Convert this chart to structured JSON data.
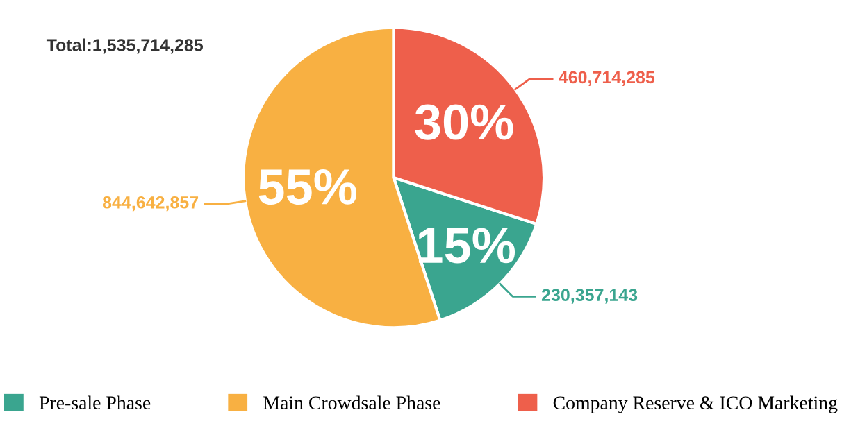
{
  "chart_data": {
    "type": "pie",
    "categories": [
      "Pre-sale Phase",
      "Main Crowdsale Phase",
      "Company Reserve & ICO Marketing"
    ],
    "values": [
      15,
      55,
      30
    ],
    "colors": [
      "#3aa58f",
      "#f8b042",
      "#ee5f4b"
    ],
    "value_labels": [
      "15%",
      "55%",
      "30%"
    ],
    "legend": "bottom",
    "annotations": [
      "Total:1,535,714,285",
      {
        "text": "230,357,143",
        "x": "Pre-sale Phase"
      },
      {
        "text": "844,642,857",
        "x": "Main Crowdsale Phase"
      },
      {
        "text": "460,714,285",
        "x": "Company Reserve & ICO Marketing"
      }
    ]
  }
}
